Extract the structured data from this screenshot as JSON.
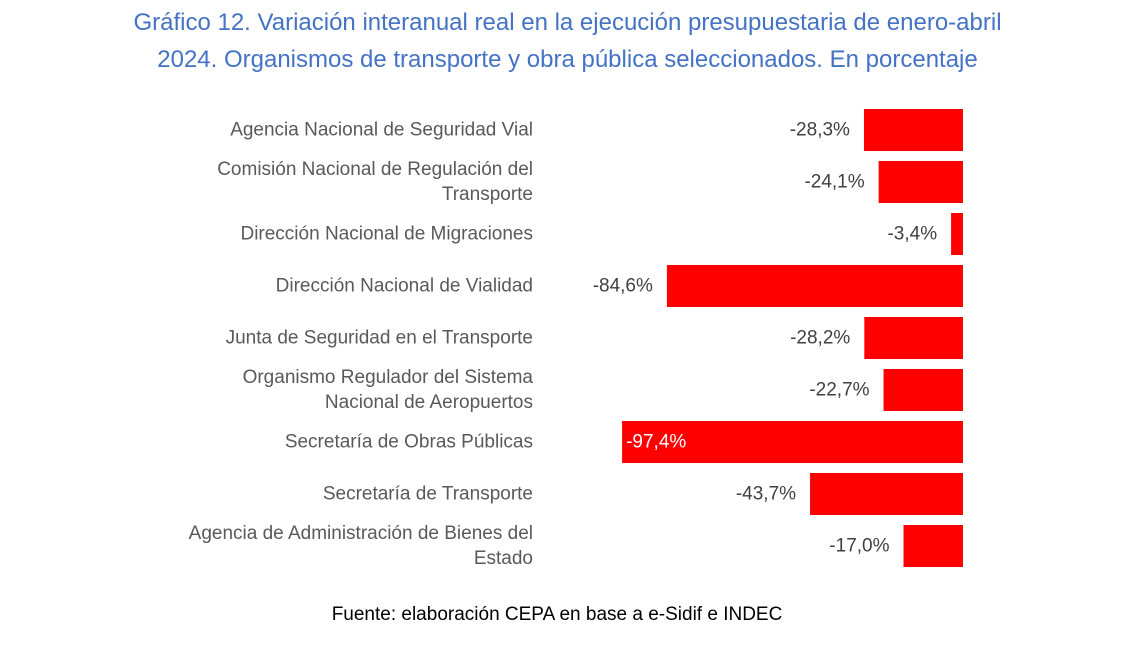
{
  "title": {
    "line1": "Gráfico 12. Variación interanual real en la ejecución presupuestaria de enero-abril",
    "line2": "2024. Organismos de transporte y obra pública seleccionados. En porcentaje"
  },
  "source": "Fuente: elaboración CEPA en base a e-Sidif e INDEC",
  "colors": {
    "bar": "#ff0000",
    "category_text": "#595959",
    "value_text": "#404040",
    "value_text_inside": "#ffffff",
    "title": "#4472c4"
  },
  "chart_data": {
    "type": "bar",
    "orientation": "horizontal",
    "categories": [
      [
        "Agencia Nacional de Seguridad Vial"
      ],
      [
        "Comisión Nacional de Regulación del",
        "Transporte"
      ],
      [
        "Dirección Nacional de Migraciones"
      ],
      [
        "Dirección Nacional de Vialidad"
      ],
      [
        "Junta de Seguridad en el Transporte"
      ],
      [
        "Organismo Regulador del Sistema",
        "Nacional de Aeropuertos"
      ],
      [
        "Secretaría de Obras Públicas"
      ],
      [
        "Secretaría de Transporte"
      ],
      [
        "Agencia de Administración de Bienes del",
        "Estado"
      ]
    ],
    "values": [
      -28.3,
      -24.1,
      -3.4,
      -84.6,
      -28.2,
      -22.7,
      -97.4,
      -43.7,
      -17.0
    ],
    "data_labels": [
      "-28,3%",
      "-24,1%",
      "-3,4%",
      "-84,6%",
      "-28,2%",
      "-22,7%",
      "-97,4%",
      "-43,7%",
      "-17,0%"
    ],
    "inside_label_index": 6,
    "grid": false,
    "legend": "none"
  }
}
